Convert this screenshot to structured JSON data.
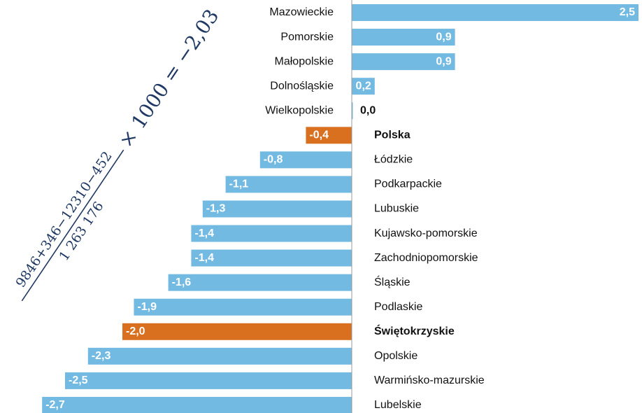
{
  "chart_data": {
    "type": "hbar",
    "categories": [
      "Mazowieckie",
      "Pomorskie",
      "Małopolskie",
      "Dolnośląskie",
      "Wielkopolskie",
      "Polska",
      "Łódzkie",
      "Podkarpackie",
      "Lubuskie",
      "Kujawsko-pomorskie",
      "Zachodniopomorskie",
      "Śląskie",
      "Podlaskie",
      "Świętokrzyskie",
      "Opolskie",
      "Warmińsko-mazurskie",
      "Lubelskie"
    ],
    "values": [
      2.5,
      0.9,
      0.9,
      0.2,
      0.0,
      -0.4,
      -0.8,
      -1.1,
      -1.3,
      -1.4,
      -1.4,
      -1.6,
      -1.9,
      -2.0,
      -2.3,
      -2.5,
      -2.7
    ],
    "value_labels": [
      "2,5",
      "0,9",
      "0,9",
      "0,2",
      "0,0",
      "-0,4",
      "-0,8",
      "-1,1",
      "-1,3",
      "-1,4",
      "-1,4",
      "-1,6",
      "-1,9",
      "-2,0",
      "-2,3",
      "-2,5",
      "-2,7"
    ],
    "color": "#73bae2",
    "colors": [
      "#73bae2",
      "#73bae2",
      "#73bae2",
      "#73bae2",
      "#73bae2",
      "#d8701f",
      "#73bae2",
      "#73bae2",
      "#73bae2",
      "#73bae2",
      "#73bae2",
      "#73bae2",
      "#73bae2",
      "#d8701f",
      "#73bae2",
      "#73bae2",
      "#73bae2"
    ],
    "xlim": [
      -3.0,
      2.5
    ],
    "annotation": {
      "numerator": "9846+346−12310−452",
      "denominator": "1 263 176",
      "result": "× 1000 = −2,03"
    }
  }
}
